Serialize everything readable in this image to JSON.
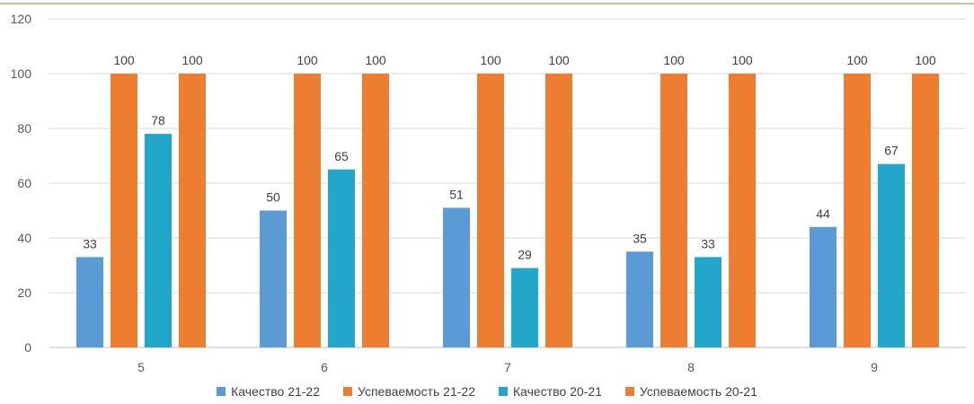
{
  "chart_data": {
    "type": "bar",
    "categories": [
      "5",
      "6",
      "7",
      "8",
      "9"
    ],
    "series": [
      {
        "name": "Качество 21-22",
        "values": [
          33,
          50,
          51,
          35,
          44
        ],
        "color": "#5B9BD5"
      },
      {
        "name": "Успеваемость 21-22",
        "values": [
          100,
          100,
          100,
          100,
          100
        ],
        "color": "#ED7D31"
      },
      {
        "name": "Качество 20-21",
        "values": [
          78,
          65,
          29,
          33,
          67
        ],
        "color": "#23A6CC"
      },
      {
        "name": "Успеваемость 20-21",
        "values": [
          100,
          100,
          100,
          100,
          100
        ],
        "color": "#ED7D31"
      }
    ],
    "ylim": [
      0,
      120
    ],
    "yticks": [
      0,
      20,
      40,
      60,
      80,
      100,
      120
    ],
    "grid": true,
    "legend": "bottom",
    "data_labels": true,
    "title": "",
    "xlabel": "",
    "ylabel": ""
  }
}
